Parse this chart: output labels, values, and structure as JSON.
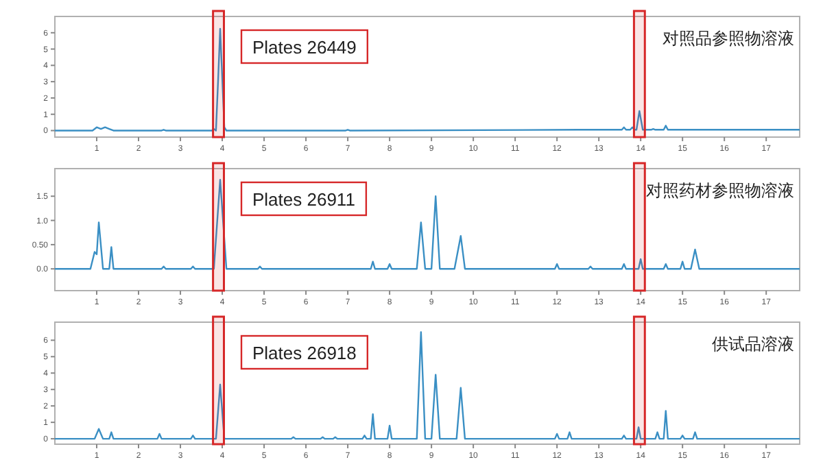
{
  "chart_data": [
    {
      "type": "line",
      "title": "对照品参照物溶液",
      "annotations": [
        "Plates 26449"
      ],
      "xlim": [
        0,
        17.8
      ],
      "xticks": [
        1,
        2,
        3,
        4,
        5,
        6,
        7,
        8,
        9,
        10,
        11,
        12,
        13,
        14,
        15,
        16,
        17
      ],
      "ylim": [
        -0.4,
        7
      ],
      "yticks": [
        0,
        1,
        2,
        3,
        4,
        5,
        6
      ],
      "grid": false,
      "bands": [
        {
          "axis": "x",
          "from": 3.78,
          "to": 4.04,
          "color": "#d62728"
        },
        {
          "axis": "x",
          "from": 13.84,
          "to": 14.1,
          "color": "#d62728"
        }
      ],
      "series": [
        {
          "color": "#3a8fc4",
          "x": [
            0,
            0.9,
            1.0,
            1.1,
            1.2,
            1.3,
            1.4,
            2.55,
            2.6,
            2.65,
            3.75,
            3.8,
            3.85,
            3.9,
            3.95,
            4.05,
            4.1,
            6.95,
            7.0,
            7.05,
            12.5,
            13.55,
            13.6,
            13.65,
            13.75,
            13.8,
            13.85,
            13.9,
            13.97,
            14.05,
            14.25,
            14.3,
            14.35,
            14.55,
            14.6,
            14.65,
            15.25,
            15.3,
            15.35,
            17.8
          ],
          "values": [
            0,
            0,
            0.2,
            0.1,
            0.2,
            0.1,
            0,
            0,
            0.05,
            0,
            0,
            0.1,
            0,
            3,
            6.25,
            0.2,
            0,
            0,
            0.05,
            0,
            0.05,
            0.05,
            0.2,
            0.05,
            0.05,
            0.2,
            0.05,
            0.05,
            1.2,
            0.05,
            0.05,
            0.1,
            0.05,
            0.05,
            0.3,
            0.05,
            0.05,
            0.05,
            0.05,
            0.05
          ]
        }
      ]
    },
    {
      "type": "line",
      "title": "对照药材参照物溶液",
      "annotations": [
        "Plates 26911"
      ],
      "xlim": [
        0,
        17.8
      ],
      "xticks": [
        1,
        2,
        3,
        4,
        5,
        6,
        7,
        8,
        9,
        10,
        11,
        12,
        13,
        14,
        15,
        16,
        17
      ],
      "ylim": [
        -0.45,
        2.07
      ],
      "yticks": [
        {
          "value": 0,
          "label": "0.0"
        },
        {
          "value": 0.5,
          "label": "0.50"
        },
        {
          "value": 1,
          "label": "1.0"
        },
        {
          "value": 1.5,
          "label": "1.5"
        }
      ],
      "grid": false,
      "bands": [
        {
          "axis": "x",
          "from": 3.78,
          "to": 4.04,
          "color": "#d62728"
        },
        {
          "axis": "x",
          "from": 13.84,
          "to": 14.1,
          "color": "#d62728"
        }
      ],
      "series": [
        {
          "color": "#3a8fc4",
          "x": [
            0,
            0.85,
            0.95,
            1.0,
            1.05,
            1.15,
            1.3,
            1.35,
            1.4,
            1.5,
            2.55,
            2.6,
            2.65,
            3.25,
            3.3,
            3.35,
            3.8,
            3.95,
            4.1,
            4.85,
            4.9,
            4.95,
            7.55,
            7.6,
            7.65,
            7.95,
            8.0,
            8.05,
            8.65,
            8.75,
            8.85,
            9.0,
            9.1,
            9.2,
            9.55,
            9.7,
            9.8,
            11.95,
            12.0,
            12.05,
            12.75,
            12.8,
            12.85,
            13.55,
            13.6,
            13.65,
            13.95,
            14.0,
            14.05,
            14.55,
            14.6,
            14.65,
            14.95,
            15.0,
            15.05,
            15.2,
            15.3,
            15.4,
            17.8
          ],
          "values": [
            0,
            0,
            0.35,
            0.3,
            0.96,
            0,
            0,
            0.45,
            0,
            0,
            0,
            0.05,
            0,
            0,
            0.05,
            0,
            0,
            1.84,
            0,
            0,
            0.05,
            0,
            0,
            0.15,
            0,
            0,
            0.1,
            0,
            0,
            0.96,
            0,
            0,
            1.5,
            0,
            0,
            0.68,
            0,
            0,
            0.1,
            0,
            0,
            0.05,
            0,
            0,
            0.1,
            0,
            0,
            0.2,
            0,
            0,
            0.1,
            0,
            0,
            0.15,
            0,
            0,
            0.4,
            0,
            0
          ]
        }
      ]
    },
    {
      "type": "line",
      "title": "供试品溶液",
      "annotations": [
        "Plates 26918"
      ],
      "xlim": [
        0,
        17.8
      ],
      "xticks": [
        1,
        2,
        3,
        4,
        5,
        6,
        7,
        8,
        9,
        10,
        11,
        12,
        13,
        14,
        15,
        16,
        17
      ],
      "ylim": [
        -0.33,
        7.1
      ],
      "yticks": [
        0,
        1,
        2,
        3,
        4,
        5,
        6
      ],
      "grid": false,
      "bands": [
        {
          "axis": "x",
          "from": 3.78,
          "to": 4.04,
          "color": "#d62728"
        },
        {
          "axis": "x",
          "from": 13.84,
          "to": 14.1,
          "color": "#d62728"
        }
      ],
      "series": [
        {
          "color": "#3a8fc4",
          "x": [
            0,
            0.95,
            1.05,
            1.15,
            1.3,
            1.35,
            1.4,
            2.45,
            2.5,
            2.55,
            3.25,
            3.3,
            3.35,
            3.85,
            3.95,
            4.05,
            5.65,
            5.7,
            5.75,
            6.35,
            6.4,
            6.45,
            6.65,
            6.7,
            6.75,
            7.35,
            7.4,
            7.45,
            7.55,
            7.6,
            7.65,
            7.95,
            8.0,
            8.05,
            8.65,
            8.75,
            8.85,
            9.0,
            9.1,
            9.2,
            9.6,
            9.7,
            9.8,
            11.95,
            12.0,
            12.05,
            12.25,
            12.3,
            12.35,
            13.55,
            13.6,
            13.65,
            13.9,
            13.95,
            14.0,
            14.35,
            14.4,
            14.45,
            14.55,
            14.6,
            14.65,
            14.95,
            15.0,
            15.05,
            15.25,
            15.3,
            15.35,
            17.8
          ],
          "values": [
            0,
            0,
            0.6,
            0,
            0,
            0.4,
            0,
            0,
            0.3,
            0,
            0,
            0.2,
            0,
            0,
            3.3,
            0,
            0,
            0.1,
            0,
            0,
            0.1,
            0,
            0,
            0.1,
            0,
            0,
            0.2,
            0,
            0,
            1.5,
            0,
            0,
            0.8,
            0,
            0,
            6.5,
            0,
            0,
            3.9,
            0,
            0,
            3.1,
            0,
            0,
            0.3,
            0,
            0,
            0.4,
            0,
            0,
            0.2,
            0,
            0,
            0.7,
            0,
            0,
            0.4,
            0,
            0,
            1.7,
            0,
            0,
            0.2,
            0,
            0,
            0.4,
            0,
            0
          ]
        }
      ]
    }
  ]
}
